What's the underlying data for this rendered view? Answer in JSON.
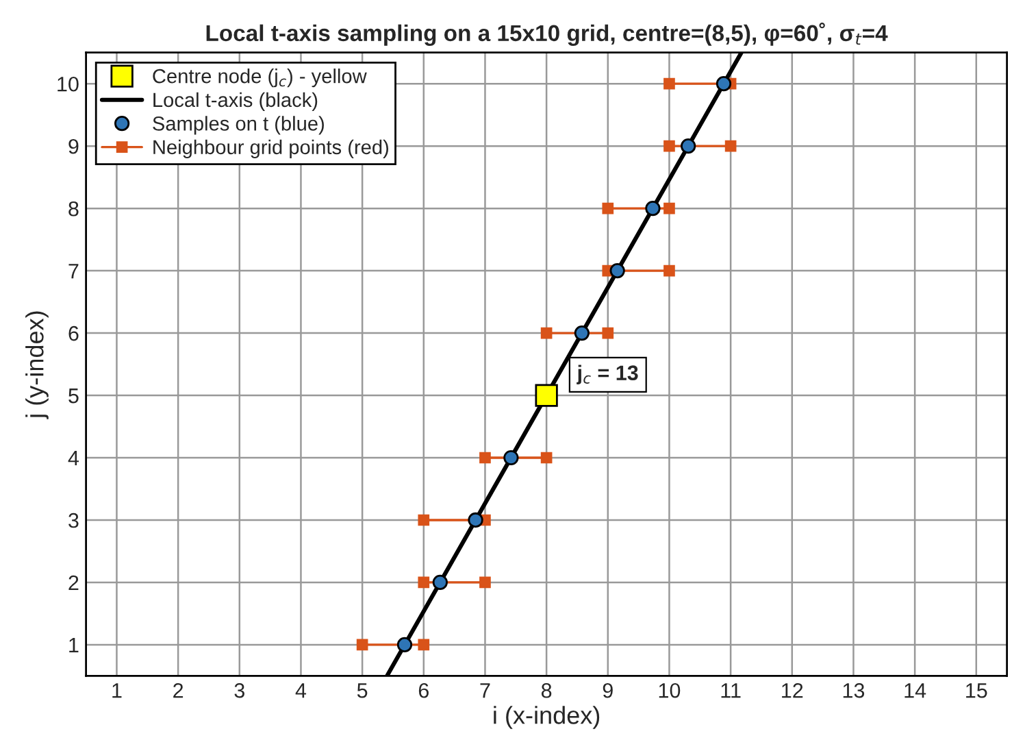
{
  "chart_data": {
    "type": "scatter",
    "title": "Local t-axis sampling on a 15x10 grid, centre=(8,5), φ=60˚, σ$_{t}$=4",
    "xlabel": "i (x-index)",
    "ylabel": "j (y-index)",
    "xlim": [
      0.5,
      15.5
    ],
    "ylim": [
      0.5,
      10.5
    ],
    "xticks": [
      1,
      2,
      3,
      4,
      5,
      6,
      7,
      8,
      9,
      10,
      11,
      12,
      13,
      14,
      15
    ],
    "yticks": [
      1,
      2,
      3,
      4,
      5,
      6,
      7,
      8,
      9,
      10
    ],
    "grid": true,
    "legend": "top left",
    "annotations": [
      {
        "text": "j$_{c}$ = 13",
        "x": 8,
        "y": 5
      }
    ],
    "series": [
      {
        "name": "Centre node (j$_{c}$) - yellow",
        "marker": "square",
        "color": "#ffff00",
        "x": [
          8
        ],
        "values": [
          5
        ]
      },
      {
        "name": "Local t-axis (black)",
        "type": "line",
        "marker": "none",
        "line_style": "solid",
        "color": "#000000",
        "x": [
          5.402,
          11.175
        ],
        "values": [
          0.5,
          10.5
        ]
      },
      {
        "name": "Samples on t (blue)",
        "marker": "circle",
        "color": "#2e75b6",
        "x": [
          5.69,
          6.268,
          6.845,
          7.423,
          8.577,
          9.155,
          9.732,
          10.309,
          10.887
        ],
        "values": [
          1,
          2,
          3,
          4,
          6,
          7,
          8,
          9,
          10
        ]
      },
      {
        "name": "Neighbour grid points (red)",
        "type": "line",
        "marker": "square",
        "line_style": "solid",
        "color": "#d95319",
        "x": [
          5,
          6
        ],
        "values": [
          1,
          1
        ]
      },
      {
        "type": "line",
        "marker": "square",
        "line_style": "solid",
        "color": "#d95319",
        "x": [
          6,
          7
        ],
        "values": [
          2,
          2
        ]
      },
      {
        "type": "line",
        "marker": "square",
        "line_style": "solid",
        "color": "#d95319",
        "x": [
          6,
          7
        ],
        "values": [
          3,
          3
        ]
      },
      {
        "type": "line",
        "marker": "square",
        "line_style": "solid",
        "color": "#d95319",
        "x": [
          7,
          8
        ],
        "values": [
          4,
          4
        ]
      },
      {
        "type": "line",
        "marker": "square",
        "line_style": "solid",
        "color": "#d95319",
        "x": [
          8,
          9
        ],
        "values": [
          6,
          6
        ]
      },
      {
        "type": "line",
        "marker": "square",
        "line_style": "solid",
        "color": "#d95319",
        "x": [
          9,
          10
        ],
        "values": [
          7,
          7
        ]
      },
      {
        "type": "line",
        "marker": "square",
        "line_style": "solid",
        "color": "#d95319",
        "x": [
          9,
          10
        ],
        "values": [
          8,
          8
        ]
      },
      {
        "type": "line",
        "marker": "square",
        "line_style": "solid",
        "color": "#d95319",
        "x": [
          10,
          11
        ],
        "values": [
          9,
          9
        ]
      },
      {
        "type": "line",
        "marker": "square",
        "line_style": "solid",
        "color": "#d95319",
        "x": [
          10,
          11
        ],
        "values": [
          10,
          10
        ]
      }
    ]
  }
}
